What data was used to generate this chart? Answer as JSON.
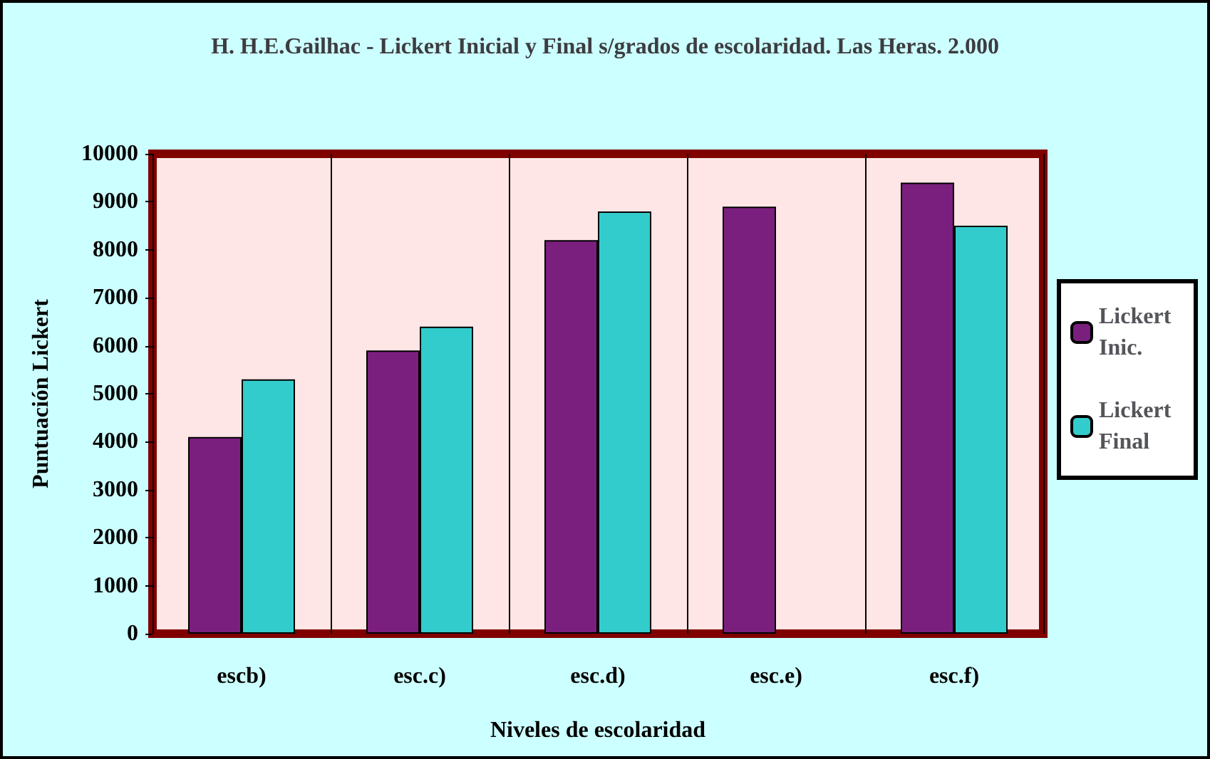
{
  "chart_data": {
    "type": "bar",
    "title": "H. H.E.Gailhac - Lickert Inicial y Final s/grados de escolaridad. Las Heras. 2.000",
    "xlabel": "Niveles de escolaridad",
    "ylabel": "Puntuación Lickert",
    "categories": [
      "escb)",
      "esc.c)",
      "esc.d)",
      "esc.e)",
      "esc.f)"
    ],
    "series": [
      {
        "name": "Lickert Inic.",
        "color": "#7b1f7f",
        "values": [
          4100,
          5900,
          8200,
          8900,
          9400
        ]
      },
      {
        "name": "Lickert Final",
        "color": "#33cccc",
        "values": [
          5300,
          6400,
          8800,
          null,
          8500
        ]
      }
    ],
    "ylim": [
      0,
      10000
    ],
    "yticks": [
      0,
      1000,
      2000,
      3000,
      4000,
      5000,
      6000,
      7000,
      8000,
      9000,
      10000
    ],
    "grid": "x",
    "legend": "right"
  }
}
